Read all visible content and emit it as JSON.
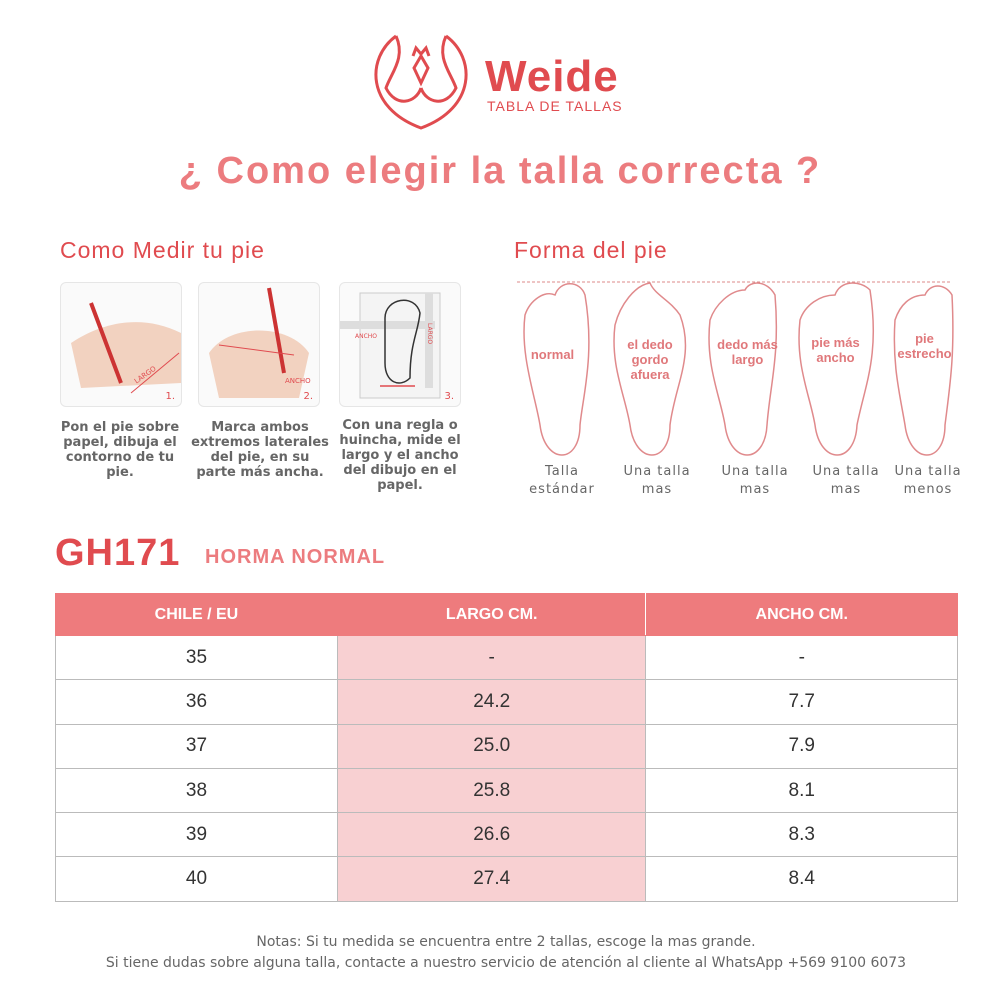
{
  "brand": {
    "name": "Weide",
    "subtitle": "TABLA DE TALLAS",
    "color": "#e04b4f"
  },
  "title": "¿ Como elegir la talla correcta ?",
  "measure": {
    "heading": "Como Medir tu pie",
    "steps": [
      {
        "num": "1.",
        "label": "LARGO",
        "text": "Pon el pie sobre papel, dibuja el contorno de tu pie."
      },
      {
        "num": "2.",
        "label": "ANCHO",
        "text": "Marca ambos extremos laterales del pie, en su parte más ancha."
      },
      {
        "num": "3.",
        "label": "LARGO",
        "label2": "ANCHO",
        "text": "Con una regla o huincha, mide el largo y el ancho del dibujo en el papel."
      }
    ]
  },
  "shape": {
    "heading": "Forma del pie",
    "feet": [
      {
        "inner": "normal",
        "caption": "Talla estándar"
      },
      {
        "inner": "el dedo gordo afuera",
        "caption": "Una talla mas"
      },
      {
        "inner": "dedo más largo",
        "caption": "Una talla mas"
      },
      {
        "inner": "pie más ancho",
        "caption": "Una talla mas"
      },
      {
        "inner": "pie estrecho",
        "caption": "Una talla menos"
      }
    ]
  },
  "model": {
    "code": "GH171",
    "fit": "HORMA NORMAL"
  },
  "table": {
    "headers": [
      "CHILE / EU",
      "LARGO CM.",
      "ANCHO CM."
    ],
    "header_color": "#ee7b7d",
    "highlight_color": "#f8d0d2",
    "rows": [
      [
        "35",
        "-",
        "-"
      ],
      [
        "36",
        "24.2",
        "7.7"
      ],
      [
        "37",
        "25.0",
        "7.9"
      ],
      [
        "38",
        "25.8",
        "8.1"
      ],
      [
        "39",
        "26.6",
        "8.3"
      ],
      [
        "40",
        "27.4",
        "8.4"
      ]
    ]
  },
  "notes": [
    "Notas: Si tu medida se encuentra entre 2 tallas, escoge la mas grande.",
    "Si tiene dudas sobre alguna talla, contacte a nuestro servicio de atención al cliente al WhatsApp +569 9100 6073"
  ]
}
